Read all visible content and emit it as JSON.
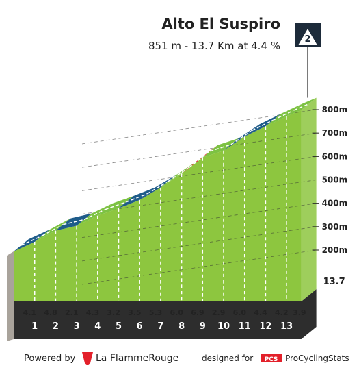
{
  "header": {
    "title": "Alto El Suspiro",
    "subtitle": "851 m - 13.7 Km at 4.4 %",
    "category": "2"
  },
  "chart_data": {
    "type": "profile",
    "summit": 851,
    "distance": 13.7,
    "km_ticks": [
      1,
      2,
      3,
      4,
      5,
      6,
      7,
      8,
      9,
      10,
      11,
      12,
      13
    ],
    "values": [
      4.1,
      4.8,
      2.1,
      4.3,
      3.2,
      3.5,
      5.3,
      6.0,
      6.9,
      2.9,
      6.0,
      4.4,
      4.2,
      3.9
    ],
    "value_labels": [
      "4.1",
      "4.8",
      "2.1",
      "4.3",
      "3.2",
      "3.5",
      "5.3",
      "6.0",
      "6.9",
      "2.9",
      "6.0",
      "4.4",
      "4.2",
      "3.9"
    ],
    "colors": [
      "#1f5c8a",
      "#7dc243",
      "#1f5c8a",
      "#7dc243",
      "#7dc243",
      "#1f5c8a",
      "#1f5c8a",
      "#7dc243",
      "#e3202a",
      "#7dc243",
      "#1f5c8a",
      "#1f5c8a",
      "#7dc243",
      "#7dc243"
    ],
    "face_color": "#8dc63f",
    "ylim": [
      200,
      800
    ],
    "yticks": [
      {
        "value": 200,
        "label": "200m"
      },
      {
        "value": 300,
        "label": "300m"
      },
      {
        "value": 400,
        "label": "400m"
      },
      {
        "value": 500,
        "label": "500m"
      },
      {
        "value": 600,
        "label": "600m"
      },
      {
        "value": 700,
        "label": "700m"
      },
      {
        "value": 800,
        "label": "800m"
      }
    ]
  },
  "footer": {
    "powered": "Powered by",
    "brand": "La FlammeRouge",
    "designed": "designed for",
    "pcs": "PCS",
    "site": "ProCyclingStats"
  }
}
